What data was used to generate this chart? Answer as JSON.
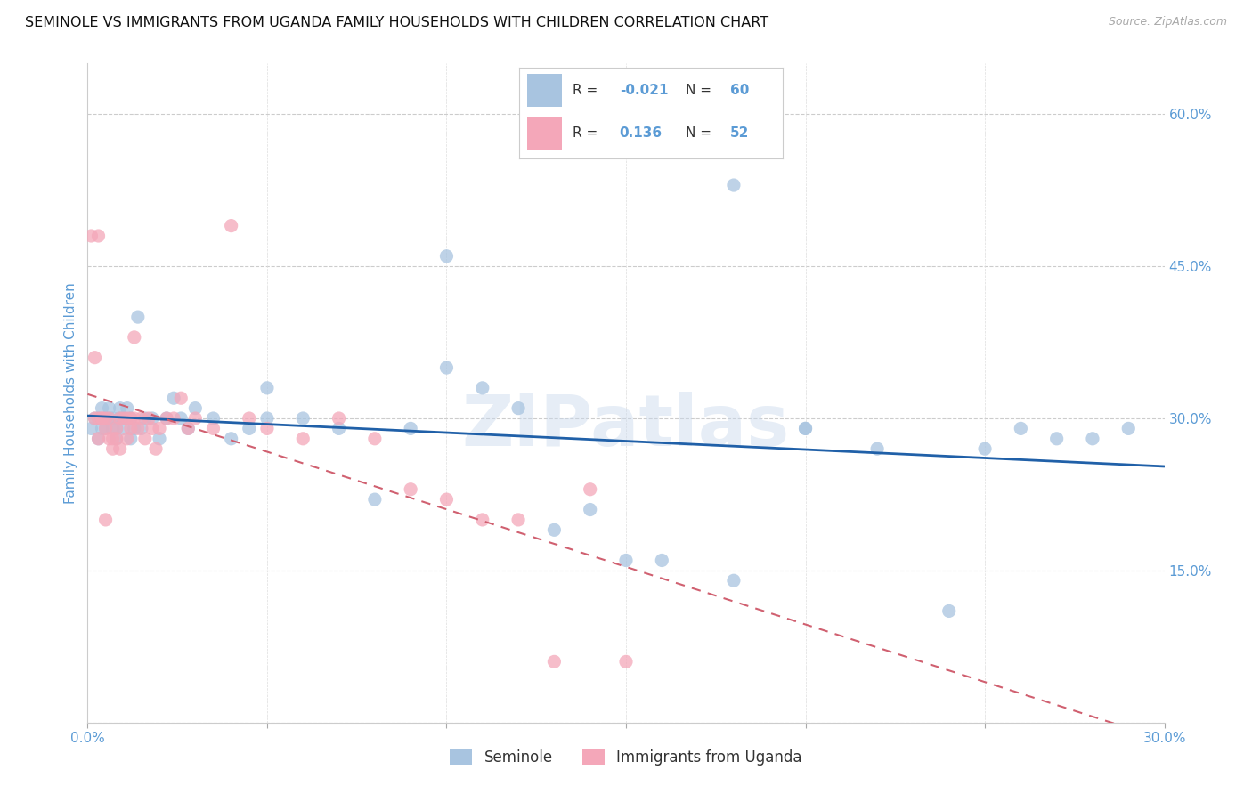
{
  "title": "SEMINOLE VS IMMIGRANTS FROM UGANDA FAMILY HOUSEHOLDS WITH CHILDREN CORRELATION CHART",
  "source": "Source: ZipAtlas.com",
  "ylabel": "Family Households with Children",
  "xlim": [
    0.0,
    0.3
  ],
  "ylim": [
    0.0,
    0.65
  ],
  "x_tick_positions": [
    0.0,
    0.05,
    0.1,
    0.15,
    0.2,
    0.25,
    0.3
  ],
  "x_tick_labels": [
    "0.0%",
    "",
    "",
    "",
    "",
    "",
    "30.0%"
  ],
  "y_ticks_right": [
    0.0,
    0.15,
    0.3,
    0.45,
    0.6
  ],
  "y_tick_labels_right": [
    "",
    "15.0%",
    "30.0%",
    "45.0%",
    "60.0%"
  ],
  "seminole_color": "#a8c4e0",
  "uganda_color": "#f4a7b9",
  "seminole_line_color": "#2060a8",
  "uganda_line_color": "#d06070",
  "watermark": "ZIPatlas",
  "seminole_label": "Seminole",
  "uganda_label": "Immigrants from Uganda",
  "legend_R1": "-0.021",
  "legend_N1": "60",
  "legend_R2": "0.136",
  "legend_N2": "52",
  "seminole_x": [
    0.001,
    0.002,
    0.003,
    0.003,
    0.004,
    0.004,
    0.005,
    0.005,
    0.006,
    0.006,
    0.007,
    0.007,
    0.008,
    0.008,
    0.009,
    0.009,
    0.01,
    0.01,
    0.011,
    0.012,
    0.012,
    0.013,
    0.014,
    0.015,
    0.016,
    0.018,
    0.02,
    0.022,
    0.024,
    0.026,
    0.028,
    0.03,
    0.035,
    0.04,
    0.045,
    0.05,
    0.06,
    0.07,
    0.08,
    0.09,
    0.1,
    0.11,
    0.12,
    0.13,
    0.14,
    0.15,
    0.16,
    0.18,
    0.2,
    0.22,
    0.24,
    0.25,
    0.26,
    0.27,
    0.28,
    0.29,
    0.18,
    0.2,
    0.1,
    0.05
  ],
  "seminole_y": [
    0.29,
    0.3,
    0.3,
    0.28,
    0.31,
    0.29,
    0.3,
    0.29,
    0.31,
    0.3,
    0.29,
    0.3,
    0.29,
    0.28,
    0.3,
    0.31,
    0.29,
    0.3,
    0.31,
    0.28,
    0.3,
    0.29,
    0.4,
    0.29,
    0.3,
    0.3,
    0.28,
    0.3,
    0.32,
    0.3,
    0.29,
    0.31,
    0.3,
    0.28,
    0.29,
    0.33,
    0.3,
    0.29,
    0.22,
    0.29,
    0.35,
    0.33,
    0.31,
    0.19,
    0.21,
    0.16,
    0.16,
    0.14,
    0.29,
    0.27,
    0.11,
    0.27,
    0.29,
    0.28,
    0.28,
    0.29,
    0.53,
    0.29,
    0.46,
    0.3
  ],
  "uganda_x": [
    0.001,
    0.002,
    0.002,
    0.003,
    0.003,
    0.004,
    0.004,
    0.005,
    0.005,
    0.006,
    0.006,
    0.007,
    0.007,
    0.008,
    0.008,
    0.009,
    0.009,
    0.01,
    0.011,
    0.011,
    0.012,
    0.012,
    0.013,
    0.013,
    0.014,
    0.015,
    0.016,
    0.017,
    0.018,
    0.019,
    0.02,
    0.022,
    0.024,
    0.026,
    0.028,
    0.03,
    0.035,
    0.04,
    0.045,
    0.05,
    0.06,
    0.07,
    0.08,
    0.09,
    0.1,
    0.11,
    0.12,
    0.13,
    0.14,
    0.15,
    0.005,
    0.003
  ],
  "uganda_y": [
    0.48,
    0.3,
    0.36,
    0.3,
    0.28,
    0.3,
    0.3,
    0.3,
    0.29,
    0.28,
    0.3,
    0.27,
    0.28,
    0.29,
    0.28,
    0.3,
    0.27,
    0.3,
    0.3,
    0.28,
    0.3,
    0.29,
    0.38,
    0.3,
    0.29,
    0.3,
    0.28,
    0.3,
    0.29,
    0.27,
    0.29,
    0.3,
    0.3,
    0.32,
    0.29,
    0.3,
    0.29,
    0.49,
    0.3,
    0.29,
    0.28,
    0.3,
    0.28,
    0.23,
    0.22,
    0.2,
    0.2,
    0.06,
    0.23,
    0.06,
    0.2,
    0.48
  ]
}
